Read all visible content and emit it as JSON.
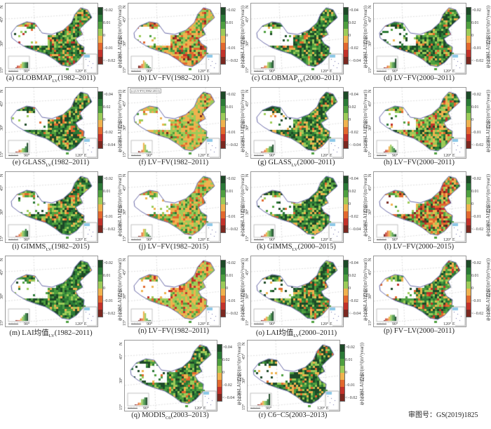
{
  "axis_label": "生长季LAI趋势/(m²/(m²/year))",
  "lat_ticks": [
    "45°",
    "30°",
    "15°"
  ],
  "lon_ticks": [
    "90°",
    "120°  E"
  ],
  "north_label": "N",
  "legend_colors": [
    "#1d4a27",
    "#2b7a36",
    "#4e9f3f",
    "#9ccb58",
    "#efb24e",
    "#e2682e",
    "#c2322a",
    "#7a2820"
  ],
  "legend_sets": {
    "A": [
      ">0.02",
      "0.01",
      "0",
      "−0.01",
      "<−0.02"
    ],
    "B": [
      ">0.04",
      "0.02",
      "0",
      "−0.02",
      "<−0.04"
    ]
  },
  "panels": [
    {
      "pre": "(a) GLOBMAP",
      "sub": "LV",
      "post": "(1982–2011)",
      "legend": "A",
      "inner": ""
    },
    {
      "pre": "(b) LV−FV(1982–2011)",
      "sub": "",
      "post": "",
      "legend": "A",
      "inner": ""
    },
    {
      "pre": "(c) GLOBMAP",
      "sub": "LV",
      "post": "(2000–2011)",
      "legend": "B",
      "inner": ""
    },
    {
      "pre": "(d) LV−FV(2000–2011)",
      "sub": "",
      "post": "",
      "legend": "A",
      "inner": ""
    },
    {
      "pre": "(e) GLASS",
      "sub": "LV",
      "post": "(1982–2011)",
      "legend": "B",
      "inner": ""
    },
    {
      "pre": "(f) LV−FV(1982–2011)",
      "sub": "",
      "post": "",
      "legend": "A",
      "inner": "(c) LV-FV(1982-2011)"
    },
    {
      "pre": "(g) GLASS",
      "sub": "LV",
      "post": "(2000–2011)",
      "legend": "B",
      "inner": ""
    },
    {
      "pre": "(h) LV−FV(2000–2011)",
      "sub": "",
      "post": "",
      "legend": "A",
      "inner": ""
    },
    {
      "pre": "(i) GIMMS",
      "sub": "LV",
      "post": "(1982–2015)",
      "legend": "A",
      "inner": ""
    },
    {
      "pre": "(j) LV−FV(1982–2015)",
      "sub": "",
      "post": "",
      "legend": "A",
      "inner": ""
    },
    {
      "pre": "(k) GIMMS",
      "sub": "LV",
      "post": "(2000–2015)",
      "legend": "B",
      "inner": ""
    },
    {
      "pre": "(l) LV−FV(2000–2015)",
      "sub": "",
      "post": "",
      "legend": "A",
      "inner": ""
    },
    {
      "pre": "(m) LAI均值",
      "sub": "LV",
      "post": "(1982–2011)",
      "legend": "A",
      "inner": ""
    },
    {
      "pre": "(n) LV−FV(1982–2011)",
      "sub": "",
      "post": "",
      "legend": "A",
      "inner": ""
    },
    {
      "pre": "(o) LAI均值",
      "sub": "LV",
      "post": "(2000–2011)",
      "legend": "B",
      "inner": ""
    },
    {
      "pre": "(p) FV−LV(2000–2011)",
      "sub": "",
      "post": "",
      "legend": "A",
      "inner": ""
    },
    {
      "pre": "(q) MODIS",
      "sub": "C6",
      "post": "(2003–2013)",
      "legend": "B",
      "inner": ""
    },
    {
      "pre": "(r) C6−C5(2003–2013)",
      "sub": "",
      "post": "",
      "legend": "A",
      "inner": ""
    }
  ],
  "review_number": "审图号：GS(2019)1825"
}
